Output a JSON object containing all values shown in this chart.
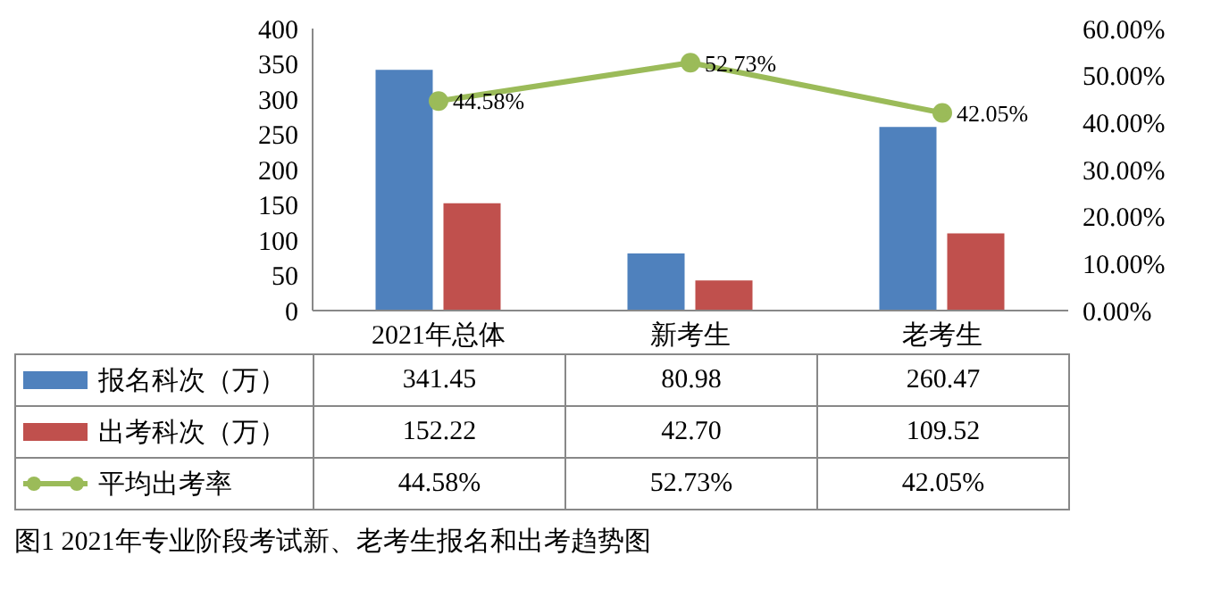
{
  "chart_data": {
    "type": "bar",
    "title": "图1  2021年专业阶段考试新、老考生报名和出考趋势图",
    "categories": [
      "2021年总体",
      "新考生",
      "老考生"
    ],
    "series": [
      {
        "name": "报名科次（万）",
        "color": "#4f81bd",
        "values": [
          341.45,
          80.98,
          260.47
        ],
        "value_labels": [
          "341.45",
          "80.98",
          "260.47"
        ]
      },
      {
        "name": "出考科次（万）",
        "color": "#c0504d",
        "values": [
          152.22,
          42.7,
          109.52
        ],
        "value_labels": [
          "152.22",
          "42.70",
          "109.52"
        ]
      },
      {
        "name": "平均出考率",
        "type": "line",
        "axis": "y2",
        "color": "#9bbb59",
        "values": [
          44.58,
          52.73,
          42.05
        ],
        "value_labels": [
          "44.58%",
          "52.73%",
          "42.05%"
        ]
      }
    ],
    "ylim": [
      0,
      400
    ],
    "yticks": [
      0,
      50,
      100,
      150,
      200,
      250,
      300,
      350,
      400
    ],
    "y2lim": [
      0,
      60
    ],
    "y2ticks": [
      {
        "value": 0,
        "label": "0.00%"
      },
      {
        "value": 10,
        "label": "10.00%"
      },
      {
        "value": 20,
        "label": "20.00%"
      },
      {
        "value": 30,
        "label": "30.00%"
      },
      {
        "value": 40,
        "label": "40.00%"
      },
      {
        "value": 50,
        "label": "50.00%"
      },
      {
        "value": 60,
        "label": "60.00%"
      }
    ],
    "marker": "circle",
    "legend": "bottom left",
    "grid": false
  }
}
